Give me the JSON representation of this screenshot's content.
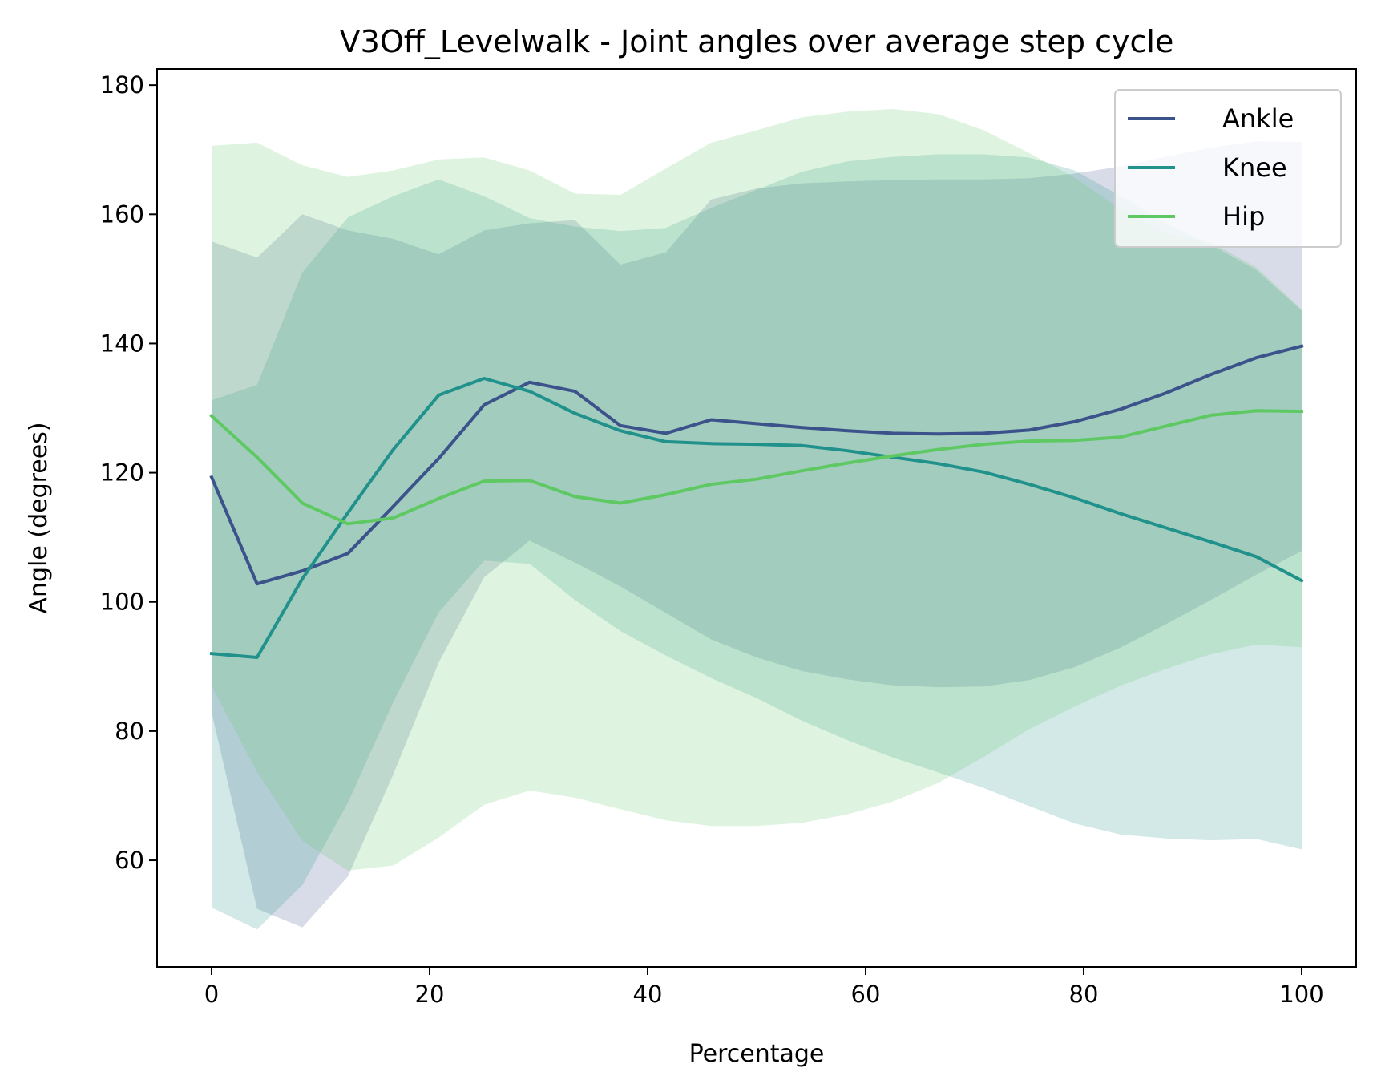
{
  "chart_data": {
    "type": "line",
    "title": "V3Off_Levelwalk - Joint angles over average step cycle",
    "xlabel": "Percentage",
    "ylabel": "Angle (degrees)",
    "xlim": [
      -5,
      105
    ],
    "ylim": [
      43.5,
      182.5
    ],
    "xticks": [
      0,
      20,
      40,
      60,
      80,
      100
    ],
    "yticks": [
      60,
      80,
      100,
      120,
      140,
      160,
      180
    ],
    "grid": false,
    "legend_position": "top-right",
    "x": [
      0,
      4.17,
      8.33,
      12.5,
      16.67,
      20.83,
      25,
      29.17,
      33.33,
      37.5,
      41.67,
      45.83,
      50,
      54.17,
      58.33,
      62.5,
      66.67,
      70.83,
      75,
      79.17,
      83.33,
      87.5,
      91.67,
      95.83,
      100
    ],
    "series": [
      {
        "name": "Ankle",
        "color": "#3b528b",
        "band_color": "#3b528b",
        "values": [
          119.3,
          102.8,
          104.8,
          107.5,
          114.8,
          122.2,
          130.5,
          134.0,
          132.6,
          127.3,
          126.1,
          128.2,
          127.6,
          127.0,
          126.5,
          126.1,
          126.0,
          126.1,
          126.6,
          127.9,
          129.8,
          132.3,
          135.2,
          137.8,
          139.6
        ],
        "upper": [
          155.8,
          153.3,
          160.0,
          157.5,
          156.2,
          153.8,
          157.5,
          158.6,
          159.1,
          152.2,
          154.1,
          162.3,
          164.0,
          164.8,
          165.1,
          165.3,
          165.4,
          165.4,
          165.6,
          166.3,
          167.4,
          168.9,
          170.3,
          171.3,
          171.2
        ],
        "lower": [
          82.9,
          52.5,
          49.6,
          57.5,
          73.3,
          90.6,
          103.8,
          109.5,
          106.1,
          102.4,
          98.3,
          94.2,
          91.4,
          89.3,
          88.0,
          87.1,
          86.8,
          86.9,
          87.9,
          89.9,
          92.9,
          96.5,
          100.3,
          104.2,
          107.9
        ]
      },
      {
        "name": "Knee",
        "color": "#21918c",
        "band_color": "#21918c",
        "values": [
          92.0,
          91.4,
          103.6,
          113.8,
          123.6,
          132.0,
          134.6,
          132.6,
          129.2,
          126.5,
          124.8,
          124.5,
          124.4,
          124.2,
          123.4,
          122.4,
          121.4,
          120.1,
          118.2,
          116.1,
          113.7,
          111.5,
          109.3,
          107.0,
          103.3
        ]
      },
      {
        "name": "Hip",
        "color": "#5ec962",
        "band_color": "#5ec962",
        "values": [
          128.8,
          122.4,
          115.3,
          112.1,
          113.0,
          116.0,
          118.7,
          118.8,
          116.3,
          115.3,
          116.6,
          118.2,
          119.0,
          120.3,
          121.5,
          122.6,
          123.6,
          124.4,
          124.9,
          125.0,
          125.5,
          127.2,
          128.9,
          129.6,
          129.5
        ],
        "upper": [
          170.6,
          171.1,
          167.6,
          165.8,
          166.8,
          168.5,
          168.8,
          166.8,
          163.2,
          163.0,
          167.1,
          171.1,
          173.0,
          175.0,
          175.9,
          176.3,
          175.5,
          173.0,
          169.5,
          165.7,
          160.8,
          157.1,
          155.7,
          151.8,
          145.3
        ],
        "lower": [
          87.0,
          73.7,
          63.0,
          58.4,
          59.2,
          63.5,
          68.6,
          70.8,
          69.7,
          67.9,
          66.2,
          65.3,
          65.3,
          65.8,
          67.1,
          69.1,
          72.0,
          76.0,
          80.3,
          83.8,
          87.0,
          89.6,
          91.9,
          93.4,
          93.0
        ]
      }
    ],
    "knee_band": {
      "upper": [
        131.2,
        133.6,
        151.0,
        159.5,
        162.8,
        165.4,
        162.8,
        159.4,
        158.1,
        157.4,
        157.9,
        161.0,
        163.8,
        166.6,
        168.2,
        168.9,
        169.3,
        169.3,
        168.8,
        166.8,
        162.9,
        158.6,
        155.3,
        151.4,
        145.1
      ],
      "lower": [
        52.7,
        49.3,
        56.2,
        68.9,
        84.5,
        98.4,
        106.4,
        105.9,
        100.3,
        95.5,
        91.7,
        88.2,
        85.1,
        81.6,
        78.6,
        75.9,
        73.6,
        71.2,
        68.4,
        65.7,
        64.0,
        63.4,
        63.1,
        63.3,
        61.7
      ]
    }
  }
}
